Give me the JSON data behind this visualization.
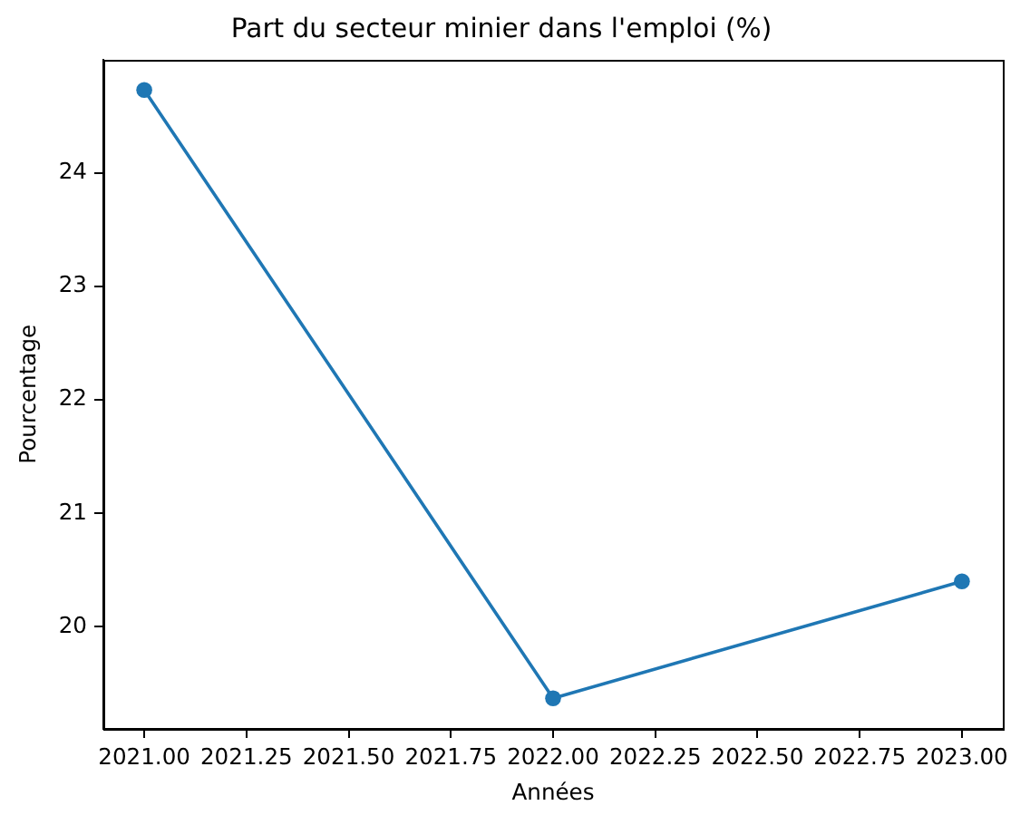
{
  "chart_data": {
    "type": "line",
    "title": "Part du secteur minier dans l'emploi (%)",
    "xlabel": "Années",
    "ylabel": "Pourcentage",
    "x": [
      2021,
      2022,
      2023
    ],
    "series": [
      {
        "color": "#1f77b4",
        "values": [
          24.73,
          19.37,
          20.4
        ]
      }
    ],
    "xlim": [
      2020.9,
      2023.1
    ],
    "xticks": [
      {
        "value": 2021,
        "label": "2021.00"
      },
      {
        "value": 2021.25,
        "label": "2021.25"
      },
      {
        "value": 2021.5,
        "label": "2021.50"
      },
      {
        "value": 2021.75,
        "label": "2021.75"
      },
      {
        "value": 2022,
        "label": "2022.00"
      },
      {
        "value": 2022.25,
        "label": "2022.25"
      },
      {
        "value": 2022.5,
        "label": "2022.50"
      },
      {
        "value": 2022.75,
        "label": "2022.75"
      },
      {
        "value": 2023,
        "label": "2023.00"
      }
    ],
    "ylim": [
      19.1,
      25.0
    ],
    "yticks": [
      20,
      21,
      22,
      23,
      24
    ],
    "marker": "circle",
    "line_style": "solid"
  }
}
